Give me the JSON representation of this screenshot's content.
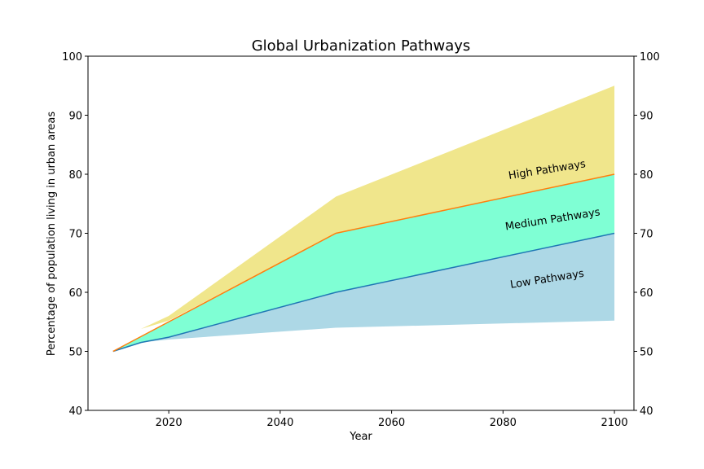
{
  "chart_data": {
    "type": "area",
    "title": "Global Urbanization Pathways",
    "xlabel": "Year",
    "ylabel": "Percentage of population living in urban areas",
    "xlim": [
      2005.5,
      2103.5
    ],
    "ylim": [
      40,
      100
    ],
    "xticks": [
      2020,
      2040,
      2060,
      2080,
      2100
    ],
    "yticks": [
      40,
      50,
      60,
      70,
      80,
      90,
      100
    ],
    "right_axis": true,
    "grid": false,
    "x": [
      2010,
      2015,
      2020,
      2050,
      2100
    ],
    "bands": [
      {
        "name": "High Pathways",
        "color": "#f0e68c",
        "lower": [
          50,
          53.8,
          55.2,
          70,
          80
        ],
        "upper": [
          50,
          53.8,
          56,
          76.2,
          95
        ]
      },
      {
        "name": "Medium Pathways",
        "color": "#7fffd4",
        "lower": [
          50,
          51.5,
          52.4,
          60,
          70
        ],
        "upper": [
          50,
          52.5,
          55,
          70,
          80
        ]
      },
      {
        "name": "Low Pathways",
        "color": "#add8e6",
        "lower": [
          50,
          51.5,
          52,
          54,
          55.2
        ],
        "upper": [
          50,
          51.5,
          52.4,
          60,
          70
        ]
      }
    ],
    "series": [
      {
        "color": "#1f77b4",
        "values": [
          50,
          51.5,
          52.4,
          60,
          70
        ]
      },
      {
        "color": "#ff7f0e",
        "values": [
          50,
          52.5,
          55,
          70,
          80
        ]
      }
    ],
    "annotations": [
      {
        "text": "High Pathways",
        "x": 2088,
        "y": 80.2,
        "rotation": -9
      },
      {
        "text": "Medium Pathways",
        "x": 2089,
        "y": 71.8,
        "rotation": -9
      },
      {
        "text": "Low Pathways",
        "x": 2088,
        "y": 61.7,
        "rotation": -9
      }
    ]
  }
}
